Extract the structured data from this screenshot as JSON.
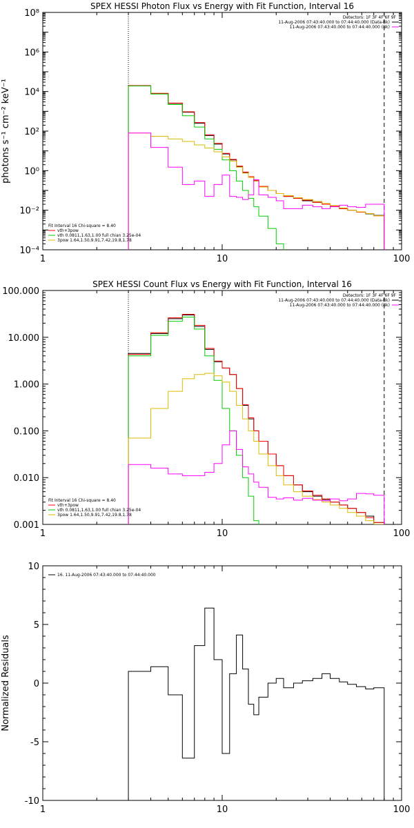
{
  "chart_data": [
    {
      "type": "line",
      "title": "SPEX HESSI Photon Flux vs Energy with Fit Function, Interval 16",
      "ylabel": "photons s⁻¹ cm⁻² keV⁻¹",
      "xlabel": "",
      "xscale": "log",
      "yscale": "log",
      "xlim": [
        1,
        100
      ],
      "ylim": [
        0.0001,
        100000000
      ],
      "xticks": [
        "1",
        "10",
        "100"
      ],
      "yticks": [
        "10⁻⁴",
        "10⁻²",
        "10⁰",
        "10²",
        "10⁴",
        "10⁶",
        "10⁸"
      ],
      "vlines": [
        {
          "x": 3,
          "style": "dotted"
        },
        {
          "x": 80,
          "style": "dashed"
        }
      ],
      "legend_top": {
        "position": "top-right",
        "header": "Detectors: 1F 3F 4F 6F 9F",
        "entries": [
          {
            "label": "11-Aug-2006 07:43:40.000 to 07:44:40.000 (Data-Bk)",
            "color": "#000000"
          },
          {
            "label": "11-Aug-2006 07:43:40.000 to 07:44:40.000 (Bk)",
            "color": "#ff00ff"
          }
        ]
      },
      "legend_bottom": {
        "position": "bottom-left",
        "header": "Fit Interval 16   Chi-square = 8.40",
        "entries": [
          {
            "label": "vth+3pow",
            "color": "#ff0000"
          },
          {
            "label": "vth 0.0811,1.63,1.00  full chian 3.25e-04",
            "color": "#00cc00"
          },
          {
            "label": "3pow 1.64,1.50,9.91,7.42,19.8,1.78",
            "color": "#ddbb00"
          }
        ]
      },
      "bin_edges": [
        3,
        4,
        5,
        6,
        7,
        8,
        9,
        10,
        11,
        12,
        13,
        14,
        15,
        16,
        18,
        20,
        22,
        25,
        28,
        32,
        36,
        40,
        45,
        50,
        56,
        63,
        70,
        80,
        100
      ],
      "series": [
        {
          "name": "Data-Bk",
          "color": "#000000",
          "values": [
            20000,
            8000,
            2500,
            900,
            250,
            60,
            22,
            7,
            3.5,
            1.6,
            0.8,
            0.5,
            0.3,
            0.15,
            0.1,
            0.07,
            0.05,
            0.04,
            0.03,
            0.025,
            0.02,
            0.016,
            0.012,
            0.01,
            0.008,
            0.0065,
            0.0055
          ]
        },
        {
          "name": "vth+3pow",
          "color": "#ff0000",
          "values": [
            20000,
            8100,
            2600,
            950,
            270,
            65,
            24,
            7.5,
            3.7,
            1.7,
            0.85,
            0.5,
            0.32,
            0.16,
            0.1,
            0.07,
            0.05,
            0.04,
            0.032,
            0.025,
            0.02,
            0.016,
            0.012,
            0.01,
            0.008,
            0.0068,
            0.0052
          ]
        },
        {
          "name": "vth",
          "color": "#00cc00",
          "values": [
            19000,
            7500,
            2200,
            600,
            160,
            40,
            12,
            3.5,
            1,
            0.3,
            0.1,
            0.04,
            0.015,
            0.005,
            0.0012,
            0.0002
          ]
        },
        {
          "name": "3pow",
          "color": "#ddbb00",
          "values": [
            80,
            55,
            40,
            30,
            20,
            14,
            9,
            5,
            3,
            1.5,
            0.75,
            0.45,
            0.3,
            0.15,
            0.1,
            0.07,
            0.055,
            0.043,
            0.035,
            0.028,
            0.022,
            0.017,
            0.013,
            0.01,
            0.0083,
            0.0067,
            0.0053
          ]
        },
        {
          "name": "Bk",
          "color": "#ff00ff",
          "values": [
            80,
            15,
            1.5,
            0.2,
            0.3,
            0.05,
            0.2,
            0.6,
            0.05,
            0.045,
            0.035,
            0.06,
            0.35,
            0.06,
            0.045,
            0.03,
            0.012,
            0.012,
            0.018,
            0.015,
            0.012,
            0.015,
            0.018,
            0.015,
            0.014,
            0.02,
            0.02
          ]
        }
      ]
    },
    {
      "type": "line",
      "title": "SPEX HESSI Count Flux vs Energy with Fit Function, Interval 16",
      "ylabel": "",
      "xlabel": "",
      "xscale": "log",
      "yscale": "log",
      "xlim": [
        1,
        100
      ],
      "ylim": [
        0.001,
        100
      ],
      "xticks": [
        "1",
        "10",
        "100"
      ],
      "yticks": [
        "0.001",
        "0.010",
        "0.100",
        "1.000",
        "10.000",
        "100.000"
      ],
      "vlines": [
        {
          "x": 3,
          "style": "dotted"
        },
        {
          "x": 80,
          "style": "dashed"
        }
      ],
      "legend_top": {
        "position": "top-right",
        "header": "Detectors: 1F 3F 4F 6F 9F",
        "entries": [
          {
            "label": "11-Aug-2006 07:43:40.000 to 07:44:40.000 (Data-Bk)",
            "color": "#000000"
          },
          {
            "label": "11-Aug-2006 07:43:40.000 to 07:44:40.000 (Bk)",
            "color": "#ff00ff"
          }
        ]
      },
      "legend_bottom": {
        "position": "bottom-left",
        "header": "Fit Interval 16   Chi-square = 8.40",
        "entries": [
          {
            "label": "vth+3pow",
            "color": "#ff0000"
          },
          {
            "label": "vth 0.0811,1.63,1.00  full chian 3.25e-04",
            "color": "#00cc00"
          },
          {
            "label": "3pow 1.64,1.50,9.91,7.42,19.8,1.78",
            "color": "#ddbb00"
          }
        ]
      },
      "bin_edges": [
        3,
        4,
        5,
        6,
        7,
        8,
        9,
        10,
        11,
        12,
        13,
        14,
        15,
        16,
        18,
        20,
        22,
        25,
        28,
        32,
        36,
        40,
        45,
        50,
        56,
        63,
        70,
        80,
        100
      ],
      "series": [
        {
          "name": "Data-Bk",
          "color": "#000000",
          "values": [
            4.5,
            12,
            25,
            30,
            17,
            5.5,
            3,
            2.2,
            1.6,
            0.8,
            0.35,
            0.18,
            0.1,
            0.06,
            0.032,
            0.018,
            0.011,
            0.007,
            0.005,
            0.004,
            0.0034,
            0.003,
            0.0026,
            0.0022,
            0.0018,
            0.0015,
            0.0011,
            0.001
          ]
        },
        {
          "name": "vth+3pow",
          "color": "#ff0000",
          "values": [
            4.3,
            12.5,
            26,
            31,
            18,
            5.8,
            3.1,
            2.2,
            1.6,
            0.8,
            0.36,
            0.19,
            0.1,
            0.06,
            0.032,
            0.018,
            0.011,
            0.007,
            0.0052,
            0.0042,
            0.0035,
            0.003,
            0.0026,
            0.0022,
            0.0018,
            0.0014,
            0.0011
          ]
        },
        {
          "name": "vth",
          "color": "#00cc00",
          "values": [
            4,
            11,
            22,
            27,
            15,
            4,
            1.2,
            0.3,
            0.1,
            0.03,
            0.01,
            0.004,
            0.0012
          ]
        },
        {
          "name": "3pow",
          "color": "#ddbb00",
          "values": [
            0.07,
            0.3,
            0.7,
            1.3,
            1.6,
            1.7,
            1.5,
            1.1,
            0.7,
            0.35,
            0.18,
            0.1,
            0.06,
            0.032,
            0.018,
            0.011,
            0.007,
            0.005,
            0.004,
            0.0034,
            0.003,
            0.0026,
            0.0022,
            0.0018,
            0.0015,
            0.0012,
            0.001
          ]
        },
        {
          "name": "Bk",
          "color": "#ff00ff",
          "values": [
            0.019,
            0.016,
            0.012,
            0.011,
            0.011,
            0.013,
            0.02,
            0.05,
            0.1,
            0.04,
            0.017,
            0.012,
            0.008,
            0.0062,
            0.0038,
            0.0035,
            0.0037,
            0.0033,
            0.0036,
            0.0033,
            0.0032,
            0.0035,
            0.0032,
            0.0035,
            0.0046,
            0.0045,
            0.0042
          ]
        }
      ]
    },
    {
      "type": "line",
      "title": "",
      "ylabel": "Normalized Residuals",
      "xlabel": "",
      "xscale": "log",
      "yscale": "linear",
      "xlim": [
        1,
        100
      ],
      "ylim": [
        -10,
        10
      ],
      "xticks": [
        "1",
        "10",
        "100"
      ],
      "yticks": [
        "-10",
        "-5",
        "0",
        "5",
        "10"
      ],
      "legend_top": {
        "position": "top-left",
        "entries": [
          {
            "label": "16. 11-Aug-2006 07:43:40.000 to 07:44:40.000",
            "color": "#000000"
          }
        ]
      },
      "bin_edges": [
        3,
        4,
        5,
        6,
        7,
        8,
        9,
        10,
        11,
        12,
        13,
        14,
        15,
        16,
        18,
        20,
        22,
        25,
        28,
        32,
        36,
        40,
        45,
        50,
        56,
        63,
        70,
        80
      ],
      "series": [
        {
          "name": "16. 11-Aug-2006 07:43:40.000 to 07:44:40.000",
          "color": "#000000",
          "values": [
            1.0,
            1.4,
            -1.0,
            -6.4,
            3.2,
            6.4,
            2.0,
            -6.0,
            0.8,
            4.1,
            1.2,
            -1.8,
            -2.7,
            -1.2,
            0.0,
            0.4,
            -0.4,
            0.0,
            0.2,
            0.4,
            0.8,
            0.4,
            0.1,
            -0.1,
            -0.3,
            -0.5,
            -0.4
          ]
        }
      ]
    }
  ]
}
